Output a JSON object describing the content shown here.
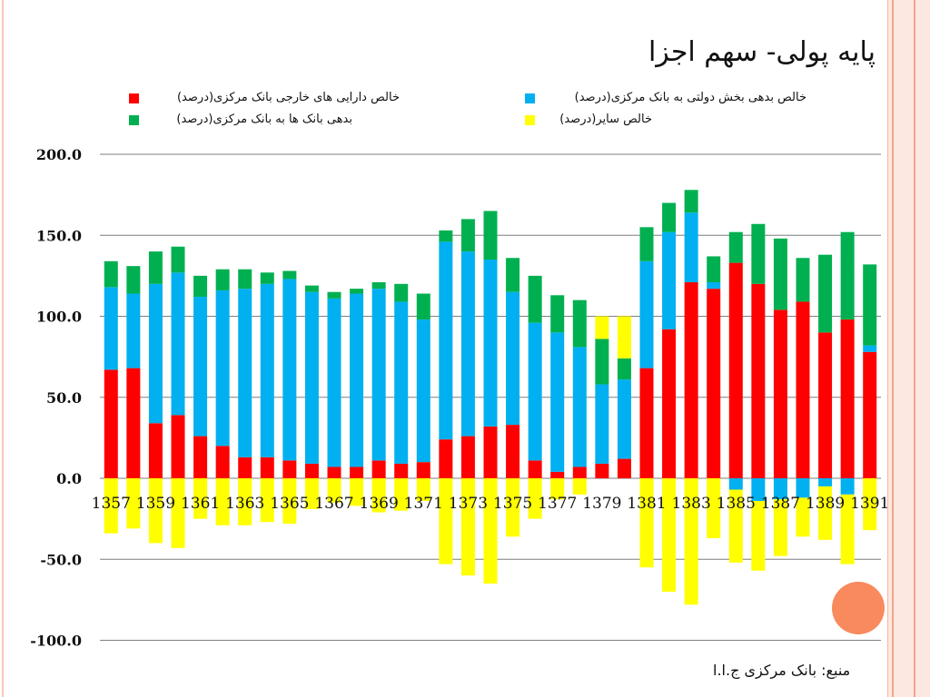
{
  "title": "پایه پولی- سهم اجزا",
  "source": "منبع: بانک مرکزی ج.ا.ا",
  "colors": {
    "frame": "#f0a58c",
    "accent_dot": "#f98a5d",
    "grid": "#7f7f7f"
  },
  "chart_data": {
    "type": "bar",
    "stacked": true,
    "categories": [
      "1357",
      "1358",
      "1359",
      "1360",
      "1361",
      "1362",
      "1363",
      "1364",
      "1365",
      "1366",
      "1367",
      "1368",
      "1369",
      "1370",
      "1371",
      "1372",
      "1373",
      "1374",
      "1375",
      "1376",
      "1377",
      "1378",
      "1379",
      "1380",
      "1381",
      "1382",
      "1383",
      "1384",
      "1385",
      "1386",
      "1387",
      "1388",
      "1389",
      "1390",
      "1391"
    ],
    "x_tick_labels": [
      "1357",
      "1359",
      "1361",
      "1363",
      "1365",
      "1367",
      "1369",
      "1371",
      "1373",
      "1375",
      "1377",
      "1379",
      "1381",
      "1383",
      "1385",
      "1387",
      "1389",
      "1391"
    ],
    "ylim": [
      -100,
      200
    ],
    "yticks": [
      "200.0",
      "150.0",
      "100.0",
      "50.0",
      "0.0",
      "-50.0",
      "-100.0"
    ],
    "ytick_values": [
      200,
      150,
      100,
      50,
      0,
      -50,
      -100
    ],
    "grid": true,
    "legend_position": "top",
    "series": [
      {
        "name": "خالص دارایی های خارجی بانک مرکزی(درصد)",
        "color": "#ff0000",
        "values": [
          67,
          68,
          34,
          39,
          26,
          20,
          13,
          13,
          11,
          9,
          7,
          7,
          11,
          9,
          10,
          24,
          26,
          32,
          33,
          11,
          4,
          7,
          9,
          12,
          68,
          92,
          121,
          117,
          133,
          120,
          104,
          109,
          90,
          98,
          78
        ]
      },
      {
        "name": "خالص بدهی بخش دولتی به بانک مرکزی(درصد)",
        "color": "#00b0f0",
        "values": [
          51,
          46,
          86,
          88,
          86,
          96,
          104,
          107,
          112,
          106,
          104,
          107,
          106,
          100,
          88,
          122,
          114,
          103,
          82,
          85,
          86,
          74,
          49,
          49,
          66,
          60,
          43,
          4,
          -7,
          -14,
          -13,
          -12,
          -5,
          -10,
          4
        ]
      },
      {
        "name": "بدهی بانک ها به بانک مرکزی(درصد)",
        "color": "#00b050",
        "values": [
          16,
          17,
          20,
          16,
          13,
          13,
          12,
          7,
          5,
          4,
          4,
          3,
          4,
          11,
          16,
          7,
          20,
          30,
          21,
          29,
          23,
          29,
          28,
          13,
          21,
          18,
          14,
          16,
          19,
          37,
          44,
          27,
          48,
          54,
          50
        ]
      },
      {
        "name": "خالص سایر(درصد)",
        "color": "#ffff00",
        "values": [
          -34,
          -31,
          -40,
          -43,
          -25,
          -29,
          -29,
          -27,
          -28,
          -19,
          -15,
          -17,
          -21,
          -20,
          -14,
          -53,
          -60,
          -65,
          -36,
          -25,
          -13,
          -10,
          14,
          26,
          -55,
          -70,
          -78,
          -37,
          -45,
          -43,
          -35,
          -24,
          -33,
          -43,
          -32
        ]
      }
    ]
  }
}
